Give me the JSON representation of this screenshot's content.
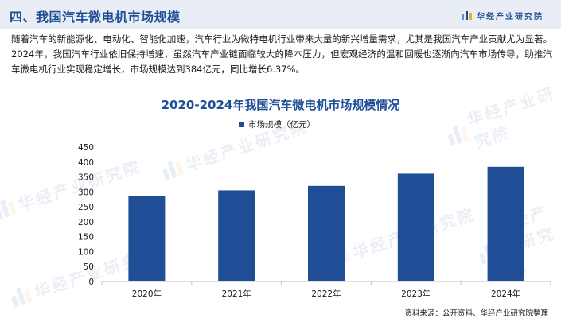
{
  "header": {
    "title": "四、我国汽车微电机市场规模",
    "brand": "华经产业研究院"
  },
  "intro": {
    "text": "随着汽车的新能源化、电动化、智能化加速，汽车行业为微特电机行业带来大量的新兴增量需求，尤其是我国汽车产业贡献尤为显著。2024年，我国汽车行业依旧保持增速，虽然汽车产业链面临较大的降本压力，但宏观经济的温和回暖也逐渐向汽车市场传导，助推汽车微电机行业实现稳定增长，市场规模达到384亿元，同比增长6.37%。"
  },
  "watermark": {
    "text": "华经产业研究院"
  },
  "source": {
    "text": "资料来源：公开资料、华经产业研究院整理"
  },
  "colors": {
    "accent": "#1f4e96",
    "bar": "#1f4e96",
    "header_bg": "#e9eef6"
  },
  "chart_data": {
    "type": "bar",
    "title": "2020-2024年我国汽车微电机市场规模情况",
    "categories": [
      "2020年",
      "2021年",
      "2022年",
      "2023年",
      "2024年"
    ],
    "series": [
      {
        "name": "市场规模（亿元）",
        "values": [
          287,
          305,
          320,
          361,
          384
        ]
      }
    ],
    "ylim": [
      0,
      450
    ],
    "yticks": [
      0,
      50,
      100,
      150,
      200,
      250,
      300,
      350,
      400,
      450
    ],
    "legend": "top-center",
    "grid": false
  }
}
